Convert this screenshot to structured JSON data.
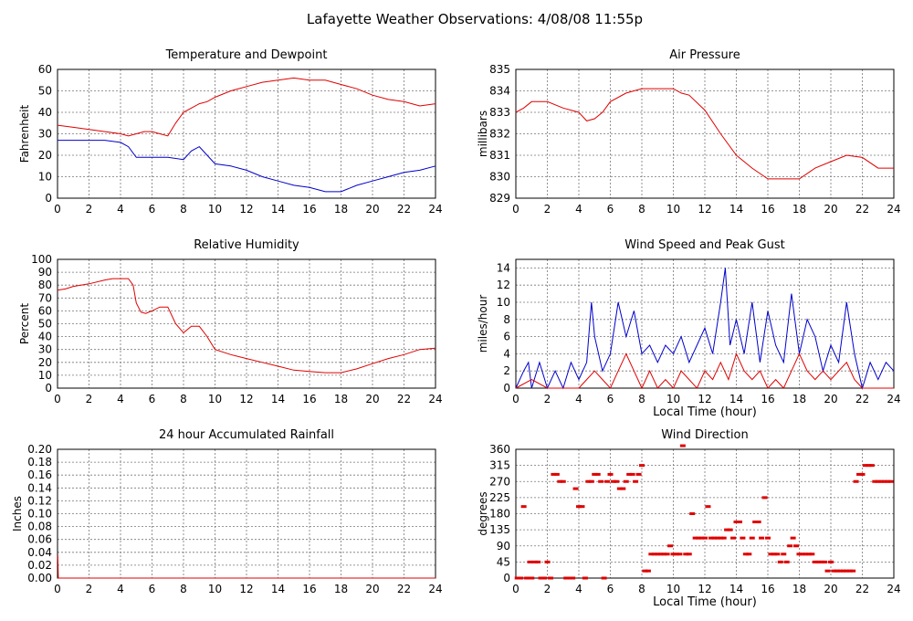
{
  "page_title": "Lafayette Weather Observations: 4/08/08 11:55p",
  "colors": {
    "red": "#e00000",
    "blue": "#0000cc",
    "grid": "#777777"
  },
  "chart_data": [
    {
      "id": "temperature",
      "type": "line",
      "title": "Temperature and Dewpoint",
      "xlabel": "",
      "ylabel": "Fahrenheit",
      "xlim": [
        0,
        24
      ],
      "ylim": [
        0,
        60
      ],
      "xticks": [
        0,
        2,
        4,
        6,
        8,
        10,
        12,
        14,
        16,
        18,
        20,
        22,
        24
      ],
      "yticks": [
        0,
        10,
        20,
        30,
        40,
        50,
        60
      ],
      "series": [
        {
          "color": "red",
          "x": [
            0,
            1,
            2,
            3,
            4,
            4.5,
            5,
            5.5,
            6,
            6.5,
            7,
            7.5,
            8,
            8.5,
            9,
            9.5,
            10,
            11,
            12,
            13,
            14,
            15,
            16,
            17,
            18,
            19,
            20,
            21,
            22,
            23,
            24
          ],
          "y": [
            34,
            33,
            32,
            31,
            30,
            29,
            30,
            31,
            31,
            30,
            29,
            35,
            40,
            42,
            44,
            45,
            47,
            50,
            52,
            54,
            55,
            56,
            55,
            55,
            53,
            51,
            48,
            46,
            45,
            43,
            44
          ]
        },
        {
          "color": "blue",
          "x": [
            0,
            1,
            2,
            3,
            4,
            4.5,
            5,
            5.5,
            6,
            7,
            8,
            8.5,
            9,
            9.5,
            10,
            11,
            12,
            13,
            14,
            15,
            16,
            17,
            18,
            19,
            20,
            21,
            22,
            23,
            24
          ],
          "y": [
            27,
            27,
            27,
            27,
            26,
            24,
            19,
            19,
            19,
            19,
            18,
            22,
            24,
            20,
            16,
            15,
            13,
            10,
            8,
            6,
            5,
            3,
            3,
            6,
            8,
            10,
            12,
            13,
            15
          ]
        }
      ]
    },
    {
      "id": "pressure",
      "type": "line",
      "title": "Air Pressure",
      "xlabel": "",
      "ylabel": "millibars",
      "xlim": [
        0,
        24
      ],
      "ylim": [
        829,
        835
      ],
      "xticks": [
        0,
        2,
        4,
        6,
        8,
        10,
        12,
        14,
        16,
        18,
        20,
        22,
        24
      ],
      "yticks": [
        829,
        830,
        831,
        832,
        833,
        834,
        835
      ],
      "series": [
        {
          "color": "red",
          "x": [
            0,
            0.5,
            1,
            2,
            3,
            4,
            4.5,
            5,
            5.5,
            6,
            7,
            8,
            9,
            10,
            10.5,
            11,
            12,
            13,
            14,
            15,
            16,
            17,
            18,
            19,
            20,
            21,
            22,
            23,
            24
          ],
          "y": [
            833,
            833.2,
            833.5,
            833.5,
            833.2,
            833,
            832.6,
            832.7,
            833,
            833.5,
            833.9,
            834.1,
            834.1,
            834.1,
            833.9,
            833.8,
            833.1,
            832,
            831,
            830.4,
            829.9,
            829.9,
            829.9,
            830.4,
            830.7,
            831,
            830.9,
            830.4,
            830.4
          ]
        }
      ]
    },
    {
      "id": "humidity",
      "type": "line",
      "title": "Relative Humidity",
      "xlabel": "",
      "ylabel": "Percent",
      "xlim": [
        0,
        24
      ],
      "ylim": [
        0,
        100
      ],
      "xticks": [
        0,
        2,
        4,
        6,
        8,
        10,
        12,
        14,
        16,
        18,
        20,
        22,
        24
      ],
      "yticks": [
        0,
        10,
        20,
        30,
        40,
        50,
        60,
        70,
        80,
        90,
        100
      ],
      "series": [
        {
          "color": "red",
          "x": [
            0,
            0.5,
            1,
            2,
            3,
            3.5,
            4,
            4.5,
            4.8,
            5,
            5.3,
            5.6,
            6,
            6.5,
            7,
            7.5,
            8,
            8.5,
            9,
            9.5,
            10,
            11,
            12,
            13,
            14,
            15,
            16,
            17,
            18,
            19,
            20,
            21,
            22,
            23,
            24
          ],
          "y": [
            76,
            77,
            79,
            81,
            84,
            85,
            85,
            85,
            80,
            66,
            59,
            58,
            60,
            63,
            63,
            50,
            43,
            48,
            48,
            40,
            30,
            26,
            23,
            20,
            17,
            14,
            13,
            12,
            12,
            15,
            19,
            23,
            26,
            30,
            31
          ]
        }
      ]
    },
    {
      "id": "wind_speed",
      "type": "line",
      "title": "Wind Speed and Peak Gust",
      "xlabel": "Local Time (hour)",
      "ylabel": "miles/hour",
      "xlim": [
        0,
        24
      ],
      "ylim": [
        0,
        15
      ],
      "xticks": [
        0,
        2,
        4,
        6,
        8,
        10,
        12,
        14,
        16,
        18,
        20,
        22,
        24
      ],
      "yticks": [
        0,
        2,
        4,
        6,
        8,
        10,
        12,
        14
      ],
      "series": [
        {
          "color": "blue",
          "x": [
            0,
            0.5,
            0.8,
            1,
            1.5,
            2,
            2.5,
            3,
            3.5,
            4,
            4.5,
            4.8,
            5,
            5.5,
            6,
            6.5,
            7,
            7.5,
            8,
            8.5,
            9,
            9.5,
            10,
            10.5,
            11,
            11.5,
            12,
            12.5,
            13,
            13.3,
            13.6,
            14,
            14.5,
            15,
            15.5,
            16,
            16.5,
            17,
            17.5,
            18,
            18.5,
            19,
            19.5,
            20,
            20.5,
            21,
            21.5,
            22,
            22.5,
            23,
            23.5,
            24
          ],
          "y": [
            0,
            2,
            3,
            0,
            3,
            0,
            2,
            0,
            3,
            1,
            3,
            10,
            6,
            2,
            4,
            10,
            6,
            9,
            4,
            5,
            3,
            5,
            4,
            6,
            3,
            5,
            7,
            4,
            10,
            14,
            5,
            8,
            4,
            10,
            3,
            9,
            5,
            3,
            11,
            4,
            8,
            6,
            2,
            5,
            3,
            10,
            4,
            0,
            3,
            1,
            3,
            2
          ]
        },
        {
          "color": "red",
          "x": [
            0,
            1,
            2,
            3,
            4,
            4.5,
            5,
            5.5,
            6,
            6.5,
            7,
            7.5,
            8,
            8.5,
            9,
            9.5,
            10,
            10.5,
            11,
            11.5,
            12,
            12.5,
            13,
            13.5,
            14,
            14.5,
            15,
            15.5,
            16,
            16.5,
            17,
            17.5,
            18,
            18.5,
            19,
            19.5,
            20,
            20.5,
            21,
            21.5,
            22,
            23,
            24
          ],
          "y": [
            0,
            1,
            0,
            0,
            0,
            1,
            2,
            1,
            0,
            2,
            4,
            2,
            0,
            2,
            0,
            1,
            0,
            2,
            1,
            0,
            2,
            1,
            3,
            1,
            4,
            2,
            1,
            2,
            0,
            1,
            0,
            2,
            4,
            2,
            1,
            2,
            1,
            2,
            3,
            1,
            0,
            0,
            0
          ]
        }
      ]
    },
    {
      "id": "rainfall",
      "type": "line",
      "title": "24 hour Accumulated Rainfall",
      "xlabel": "",
      "ylabel": "Inches",
      "xlim": [
        0,
        24
      ],
      "ylim": [
        0,
        0.2
      ],
      "xticks": [
        0,
        2,
        4,
        6,
        8,
        10,
        12,
        14,
        16,
        18,
        20,
        22,
        24
      ],
      "yticks": [
        "0.00",
        "0.02",
        "0.04",
        "0.06",
        "0.08",
        "0.10",
        "0.12",
        "0.14",
        "0.16",
        "0.18",
        "0.20"
      ],
      "series": [
        {
          "color": "red",
          "x": [
            0,
            0.02,
            0.05,
            24
          ],
          "y": [
            0.035,
            0.035,
            0,
            0
          ]
        }
      ]
    },
    {
      "id": "wind_direction",
      "type": "scatter",
      "title": "Wind Direction",
      "xlabel": "Local Time (hour)",
      "ylabel": "degrees",
      "xlim": [
        0,
        24
      ],
      "ylim": [
        0,
        360
      ],
      "xticks": [
        0,
        2,
        4,
        6,
        8,
        10,
        12,
        14,
        16,
        18,
        20,
        22,
        24
      ],
      "yticks": [
        0,
        45,
        90,
        135,
        180,
        225,
        270,
        315,
        360
      ],
      "series": [
        {
          "color": "red",
          "x": [
            0.1,
            0.3,
            0.5,
            0.7,
            0.9,
            1.0,
            1.2,
            1.4,
            1.6,
            1.8,
            2.0,
            2.2,
            2.4,
            2.6,
            2.8,
            3.0,
            3.2,
            3.4,
            3.6,
            3.8,
            4.0,
            4.2,
            4.4,
            4.6,
            4.8,
            5.0,
            5.2,
            5.4,
            5.6,
            5.8,
            6.0,
            6.2,
            6.4,
            6.6,
            6.8,
            7.0,
            7.2,
            7.4,
            7.6,
            7.8,
            8.0,
            8.2,
            8.4,
            8.6,
            8.8,
            9.0,
            9.2,
            9.4,
            9.6,
            9.8,
            10.0,
            10.2,
            10.4,
            10.6,
            10.8,
            11.0,
            11.2,
            11.4,
            11.6,
            11.8,
            12.0,
            12.2,
            12.4,
            12.6,
            12.8,
            13.0,
            13.2,
            13.4,
            13.6,
            13.8,
            14.0,
            14.2,
            14.4,
            14.6,
            14.8,
            15.0,
            15.2,
            15.4,
            15.6,
            15.8,
            16.0,
            16.2,
            16.4,
            16.6,
            16.8,
            17.0,
            17.2,
            17.4,
            17.6,
            17.8,
            18.0,
            18.2,
            18.4,
            18.6,
            18.8,
            19.0,
            19.2,
            19.4,
            19.6,
            19.8,
            20.0,
            20.2,
            20.4,
            20.6,
            20.8,
            21.0,
            21.2,
            21.4,
            21.6,
            21.8,
            22.0,
            22.2,
            22.4,
            22.6,
            22.8,
            23.0,
            23.2,
            23.4,
            23.6,
            23.8
          ],
          "y": [
            0,
            0,
            200,
            0,
            45,
            0,
            45,
            45,
            0,
            0,
            45,
            0,
            290,
            290,
            270,
            270,
            0,
            0,
            0,
            250,
            200,
            200,
            0,
            270,
            270,
            290,
            290,
            270,
            0,
            270,
            290,
            270,
            270,
            250,
            250,
            270,
            290,
            290,
            270,
            290,
            315,
            20,
            20,
            67,
            67,
            67,
            67,
            67,
            67,
            90,
            67,
            67,
            67,
            370,
            67,
            67,
            180,
            112,
            112,
            112,
            112,
            200,
            112,
            112,
            112,
            112,
            112,
            135,
            135,
            112,
            157,
            157,
            112,
            67,
            67,
            112,
            157,
            157,
            112,
            225,
            112,
            67,
            67,
            67,
            45,
            67,
            45,
            90,
            112,
            90,
            67,
            67,
            67,
            67,
            67,
            45,
            45,
            45,
            45,
            20,
            45,
            20,
            20,
            20,
            20,
            20,
            20,
            20,
            270,
            290,
            290,
            315,
            315,
            315,
            270,
            270,
            270,
            270,
            270,
            270
          ]
        }
      ]
    }
  ]
}
